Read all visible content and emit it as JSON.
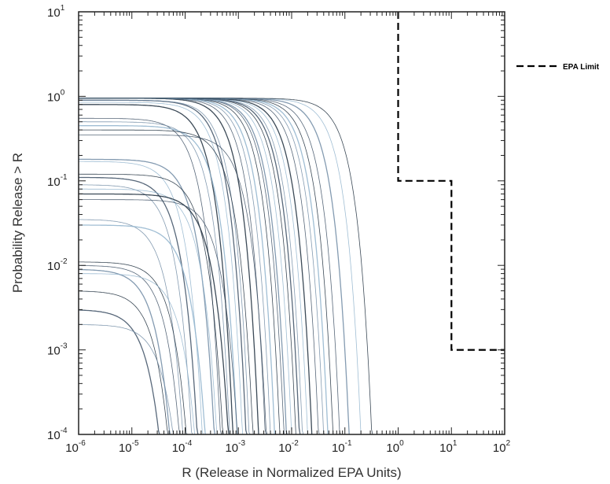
{
  "chart_data": {
    "type": "line",
    "xlabel": "R (Release in Normalized EPA Units)",
    "ylabel": "Probability Release > R",
    "x_scale": "log",
    "y_scale": "log",
    "xlim": [
      1e-06,
      100
    ],
    "ylim": [
      0.0001,
      10
    ],
    "x_ticks": [
      {
        "base": "10",
        "exp": "-6"
      },
      {
        "base": "10",
        "exp": "-5"
      },
      {
        "base": "10",
        "exp": "-4"
      },
      {
        "base": "10",
        "exp": "-3"
      },
      {
        "base": "10",
        "exp": "-2"
      },
      {
        "base": "10",
        "exp": "-1"
      },
      {
        "base": "10",
        "exp": "0"
      },
      {
        "base": "10",
        "exp": "1"
      },
      {
        "base": "10",
        "exp": "2"
      }
    ],
    "y_ticks": [
      {
        "base": "10",
        "exp": "-4"
      },
      {
        "base": "10",
        "exp": "-3"
      },
      {
        "base": "10",
        "exp": "-2"
      },
      {
        "base": "10",
        "exp": "-1"
      },
      {
        "base": "10",
        "exp": "0"
      },
      {
        "base": "10",
        "exp": "1"
      }
    ],
    "grid": false,
    "legend": {
      "position": "right",
      "entries": [
        {
          "label": "EPA Limit",
          "style": "dashed",
          "color": "#000000"
        }
      ]
    },
    "epa_limit": {
      "name": "EPA Limit",
      "x": [
        1,
        1,
        10,
        10,
        100
      ],
      "y": [
        10,
        0.1,
        0.1,
        0.001,
        0.001
      ]
    },
    "ccdf_curves": {
      "colors": [
        "#1a2a3a",
        "#3b4e63",
        "#6f8aa3",
        "#8fb3cc"
      ],
      "curves": [
        {
          "p0": 0.95,
          "xc": 0.0006
        },
        {
          "p0": 0.95,
          "xc": 0.0008
        },
        {
          "p0": 0.95,
          "xc": 0.001
        },
        {
          "p0": 0.95,
          "xc": 0.0012
        },
        {
          "p0": 0.95,
          "xc": 0.0015
        },
        {
          "p0": 0.95,
          "xc": 0.0018
        },
        {
          "p0": 0.95,
          "xc": 0.002
        },
        {
          "p0": 0.95,
          "xc": 0.0025
        },
        {
          "p0": 0.95,
          "xc": 0.003
        },
        {
          "p0": 0.95,
          "xc": 0.0035
        },
        {
          "p0": 0.95,
          "xc": 0.004
        },
        {
          "p0": 0.95,
          "xc": 0.005
        },
        {
          "p0": 0.95,
          "xc": 0.006
        },
        {
          "p0": 0.95,
          "xc": 0.008
        },
        {
          "p0": 0.95,
          "xc": 0.01
        },
        {
          "p0": 0.95,
          "xc": 0.012
        },
        {
          "p0": 0.95,
          "xc": 0.015
        },
        {
          "p0": 0.95,
          "xc": 0.02
        },
        {
          "p0": 0.95,
          "xc": 0.03
        },
        {
          "p0": 0.95,
          "xc": 0.05
        },
        {
          "p0": 0.95,
          "xc": 0.08
        },
        {
          "p0": 0.9,
          "xc": 0.00035
        },
        {
          "p0": 0.9,
          "xc": 0.0004
        },
        {
          "p0": 0.85,
          "xc": 0.0003
        },
        {
          "p0": 0.8,
          "xc": 0.0002
        },
        {
          "p0": 0.55,
          "xc": 0.00012
        },
        {
          "p0": 0.5,
          "xc": 0.00018
        },
        {
          "p0": 0.45,
          "xc": 0.00025
        },
        {
          "p0": 0.4,
          "xc": 0.0005
        },
        {
          "p0": 0.35,
          "xc": 0.0009
        },
        {
          "p0": 0.18,
          "xc": 0.0001
        },
        {
          "p0": 0.17,
          "xc": 6e-05
        },
        {
          "p0": 0.12,
          "xc": 0.00015
        },
        {
          "p0": 0.11,
          "xc": 5e-05
        },
        {
          "p0": 0.09,
          "xc": 4e-05
        },
        {
          "p0": 0.08,
          "xc": 0.00012
        },
        {
          "p0": 0.07,
          "xc": 0.0002
        },
        {
          "p0": 0.06,
          "xc": 0.0003
        },
        {
          "p0": 0.035,
          "xc": 3e-05
        },
        {
          "p0": 0.03,
          "xc": 8e-05
        },
        {
          "p0": 0.011,
          "xc": 4e-05
        },
        {
          "p0": 0.01,
          "xc": 3e-05
        },
        {
          "p0": 0.009,
          "xc": 2e-05
        },
        {
          "p0": 0.008,
          "xc": 6e-05
        },
        {
          "p0": 0.005,
          "xc": 2e-05
        },
        {
          "p0": 0.003,
          "xc": 1.5e-05
        },
        {
          "p0": 0.002,
          "xc": 3e-05
        }
      ]
    }
  }
}
